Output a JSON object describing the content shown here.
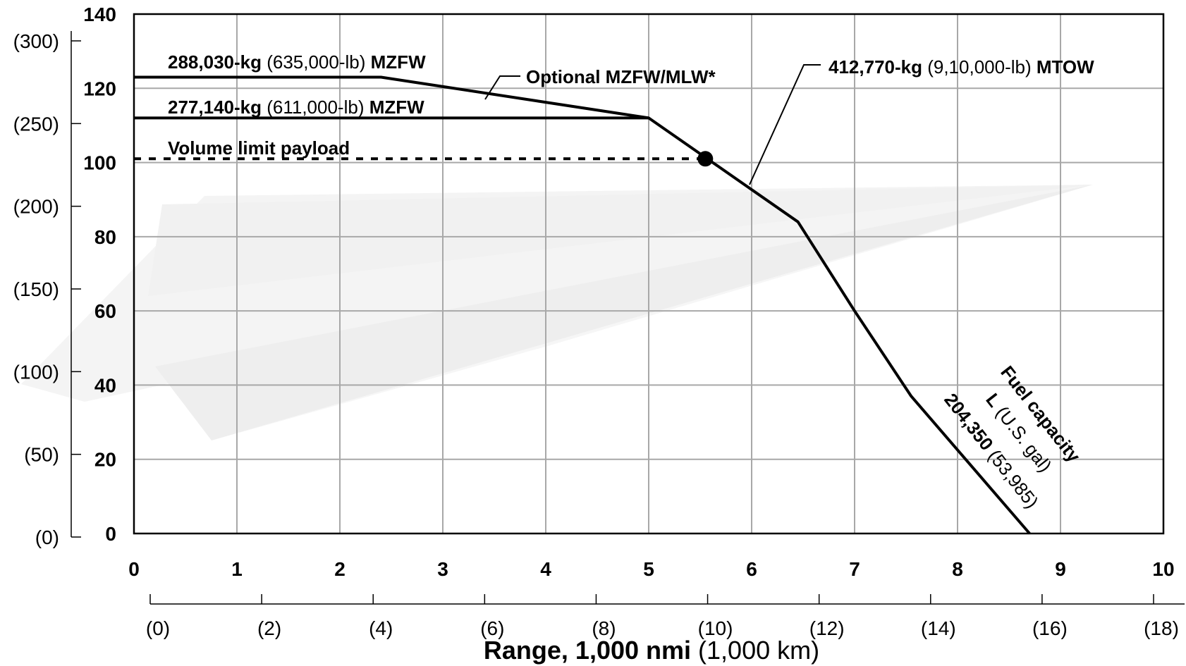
{
  "chart_data": {
    "type": "line",
    "xlabel_main": "Range, 1,000 nmi",
    "xlabel_alt": "(1,000 km)",
    "x_ticks_nmi": [
      "0",
      "1",
      "2",
      "3",
      "4",
      "5",
      "6",
      "7",
      "8",
      "9",
      "10"
    ],
    "x_ticks_km": [
      "(0)",
      "(2)",
      "(4)",
      "(6)",
      "(8)",
      "(10)",
      "(12)",
      "(14)",
      "(16)",
      "(18)"
    ],
    "x_ticks_km_values": [
      0,
      2,
      4,
      6,
      8,
      10,
      12,
      14,
      16,
      18
    ],
    "xlim": [
      0,
      10
    ],
    "y_ticks_tonnes": [
      "0",
      "20",
      "40",
      "60",
      "80",
      "100",
      "120",
      "140"
    ],
    "y_ticks_tonnes_values": [
      0,
      20,
      40,
      60,
      80,
      100,
      120,
      140
    ],
    "y_ticks_klb": [
      "(0)",
      "(50)",
      "(100)",
      "(150)",
      "(200)",
      "(250)",
      "(300)"
    ],
    "y_ticks_klb_values": [
      0,
      50,
      100,
      150,
      200,
      250,
      300
    ],
    "ylim": [
      0,
      140
    ],
    "grid": true,
    "series": [
      {
        "x": [
          0,
          2.4,
          5.0,
          6.45,
          7.0,
          7.55,
          8.7
        ],
        "y": [
          123,
          123,
          112,
          84,
          60,
          37,
          0
        ]
      },
      {
        "x": [
          0,
          5.0
        ],
        "y": [
          112,
          112
        ]
      },
      {
        "x": [
          0,
          5.55
        ],
        "y": [
          101,
          101
        ],
        "style": "dashed"
      }
    ],
    "marker": {
      "x": 5.55,
      "y": 101
    },
    "annotations": {
      "mzfw_high": {
        "bold": "288,030-kg",
        "normal": " (635,000-lb) ",
        "bold2": "MZFW"
      },
      "mzfw_low": {
        "bold": "277,140-kg",
        "normal": " (611,000-lb) ",
        "bold2": "MZFW"
      },
      "volume": "Volume limit payload",
      "optional": "Optional MZFW/MLW*",
      "mtow": {
        "bold": "412,770-kg",
        "normal": " (9,10,000-lb) ",
        "bold2": "MTOW"
      },
      "fuel": {
        "line1": "Fuel capacity",
        "line2_bold": "L",
        "line2_normal": " (U.S. gal)",
        "line3_bold": "204,350",
        "line3_normal": " (53,985)"
      }
    }
  }
}
